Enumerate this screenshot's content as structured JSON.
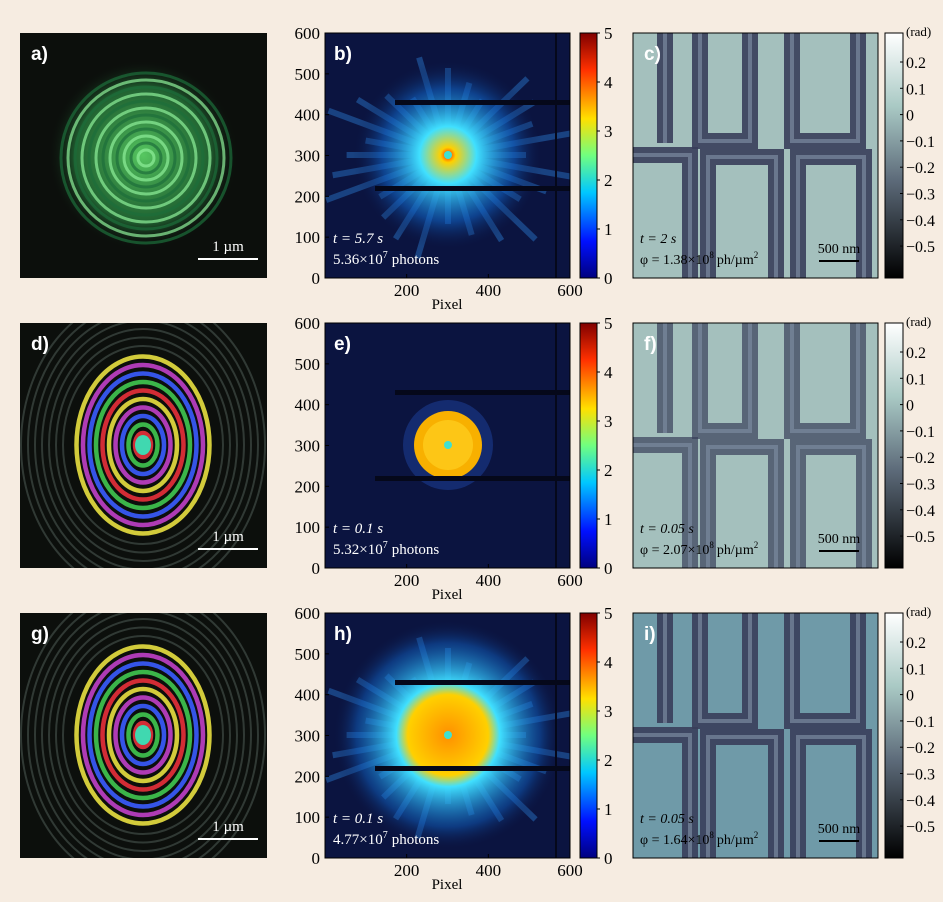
{
  "rows": [
    {
      "image": {
        "label": "a)",
        "scale_bar": "1 µm"
      },
      "detector": {
        "label": "b)",
        "time": "t = 5.7 s",
        "photons": {
          "mantissa": "5.36×10",
          "exponent": "7",
          "unit": "photons"
        }
      },
      "phase": {
        "label": "c)",
        "time": "t = 2 s",
        "fluence": {
          "prefix": "φ = 1.38×10",
          "exponent": "8",
          "unit": "ph/µm",
          "unit_exponent": "2"
        },
        "scale_bar": "500 nm"
      }
    },
    {
      "image": {
        "label": "d)",
        "scale_bar": "1 µm"
      },
      "detector": {
        "label": "e)",
        "time": "t = 0.1 s",
        "photons": {
          "mantissa": "5.32×10",
          "exponent": "7",
          "unit": "photons"
        }
      },
      "phase": {
        "label": "f)",
        "time": "t = 0.05 s",
        "fluence": {
          "prefix": "φ = 2.07×10",
          "exponent": "8",
          "unit": "ph/µm",
          "unit_exponent": "2"
        },
        "scale_bar": "500 nm"
      }
    },
    {
      "image": {
        "label": "g)",
        "scale_bar": "1 µm"
      },
      "detector": {
        "label": "h)",
        "time": "t = 0.1 s",
        "photons": {
          "mantissa": "4.77×10",
          "exponent": "7",
          "unit": "photons"
        }
      },
      "phase": {
        "label": "i)",
        "time": "t = 0.05 s",
        "fluence": {
          "prefix": "φ = 1.64×10",
          "exponent": "8",
          "unit": "ph/µm",
          "unit_exponent": "2"
        },
        "scale_bar": "500 nm"
      }
    }
  ],
  "detector_axes": {
    "yticks": [
      0,
      100,
      200,
      300,
      400,
      500,
      600
    ],
    "xticks": [
      200,
      400,
      600
    ],
    "xlabel": "Pixel",
    "colorbar_ticks": [
      0,
      1,
      2,
      3,
      4,
      5
    ]
  },
  "phase_colorbar": {
    "unit": "(rad)",
    "ticks": [
      "0.2",
      "0.1",
      "0",
      "−0.1",
      "−0.2",
      "−0.3",
      "−0.4",
      "−0.5"
    ]
  }
}
